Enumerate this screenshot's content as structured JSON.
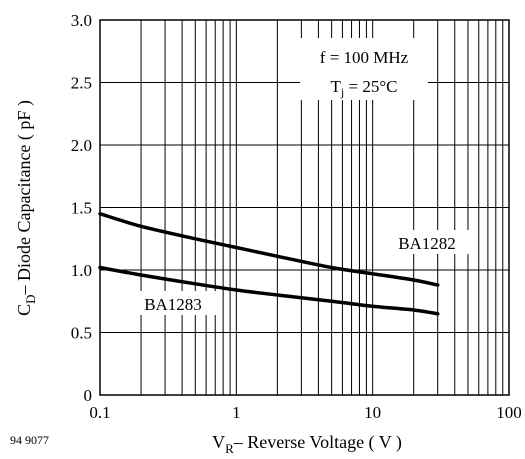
{
  "figure_code": "94 9077",
  "chart_data": {
    "type": "line",
    "x_scale": "log",
    "xlim": [
      0.1,
      100
    ],
    "ylim": [
      0,
      3.0
    ],
    "grid": true,
    "xlabel": "– Reverse Voltage ( V )",
    "xlabel_symbol": "V",
    "xlabel_subscript": "R",
    "ylabel": "– Diode Capacitance ( pF )",
    "ylabel_symbol": "C",
    "ylabel_subscript": "D",
    "x_ticks": [
      {
        "value": 0.1,
        "label": "0.1"
      },
      {
        "value": 1,
        "label": "1"
      },
      {
        "value": 10,
        "label": "10"
      },
      {
        "value": 100,
        "label": "100"
      }
    ],
    "y_ticks": [
      {
        "value": 0,
        "label": "0"
      },
      {
        "value": 0.5,
        "label": "0.5"
      },
      {
        "value": 1.0,
        "label": "1.0"
      },
      {
        "value": 1.5,
        "label": "1.5"
      },
      {
        "value": 2.0,
        "label": "2.0"
      },
      {
        "value": 2.5,
        "label": "2.5"
      },
      {
        "value": 3.0,
        "label": "3.0"
      }
    ],
    "annotations": {
      "frequency": "f = 100 MHz",
      "temperature_prefix": "T",
      "temperature_subscript": "j",
      "temperature_value": " = 25°C"
    },
    "series": [
      {
        "name": "BA1282",
        "x": [
          0.1,
          0.2,
          0.5,
          1,
          2,
          5,
          10,
          20,
          30
        ],
        "y": [
          1.45,
          1.35,
          1.25,
          1.18,
          1.11,
          1.02,
          0.97,
          0.92,
          0.88
        ]
      },
      {
        "name": "BA1283",
        "x": [
          0.1,
          0.2,
          0.5,
          1,
          2,
          5,
          10,
          20,
          30
        ],
        "y": [
          1.02,
          0.96,
          0.89,
          0.84,
          0.8,
          0.75,
          0.71,
          0.68,
          0.65
        ]
      }
    ]
  }
}
